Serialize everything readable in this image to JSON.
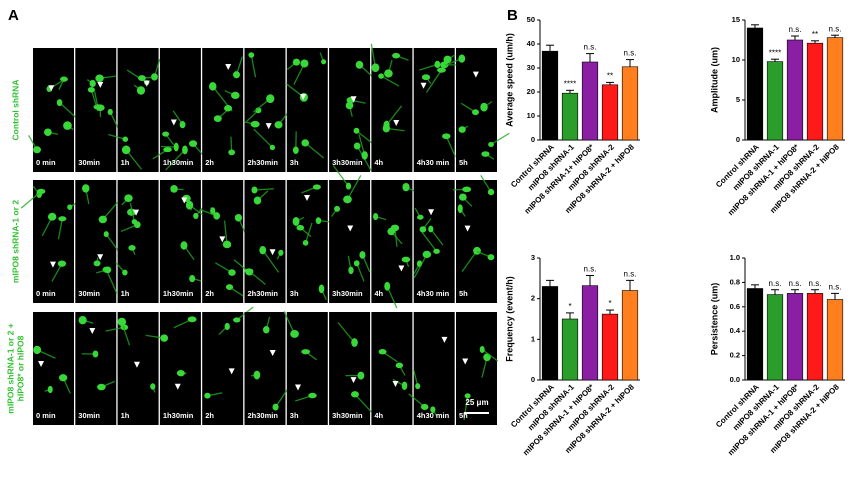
{
  "panel_a": {
    "label": "A",
    "scale_bar": "25 μm",
    "rows": [
      {
        "label": [
          "Control shRNA"
        ],
        "times": [
          "0 min",
          "30min",
          "1h",
          "1h30min",
          "2h",
          "2h30min",
          "3h",
          "3h30min",
          "4h",
          "4h30 min",
          "5h"
        ]
      },
      {
        "label": [
          "mIPO8 shRNA-1 or 2"
        ],
        "times": [
          "0 min",
          "30min",
          "1h",
          "1h30min",
          "2h",
          "2h30min",
          "3h",
          "3h30min",
          "4h",
          "4h30 min",
          "5h"
        ]
      },
      {
        "label": [
          "mIPO8 shRNA-1 or 2 +",
          "hIPO8* or hIPO8"
        ],
        "times": [
          "0 min",
          "30min",
          "1h",
          "1h30min",
          "2h",
          "2h30min",
          "3h",
          "3h30min",
          "4h",
          "4h30 min",
          "5h"
        ]
      }
    ]
  },
  "panel_b": {
    "label": "B"
  },
  "chart_data": [
    {
      "type": "bar",
      "y_label": "Average speed (um/h)",
      "categories": [
        "Control shRNA",
        "mIPO8 shRNA-1",
        "mIPO8 shRNA-1+ hIPO8*",
        "mIPO8 shRNA-2",
        "mIPO8 shRNA-2 + hIPO8"
      ],
      "values": [
        37,
        19.5,
        32.5,
        23,
        30.5
      ],
      "errors": [
        2.5,
        1.2,
        3.5,
        1,
        3
      ],
      "annotations": [
        null,
        "****",
        "n.s.",
        "**",
        "n.s."
      ],
      "colors": [
        "#000000",
        "#2a9d2a",
        "#8b1fa3",
        "#ff1a1a",
        "#ff7f1f"
      ],
      "ylim": [
        0,
        50
      ],
      "yticks": [
        0,
        10,
        20,
        30,
        40,
        50
      ]
    },
    {
      "type": "bar",
      "y_label": "Amplitude (um)",
      "categories": [
        "Control shRNA",
        "mIPO8 shRNA-1",
        "mIPO8 shRNA-1 + hIPO8*",
        "mIPO8 shRNA-2",
        "mIPO8 shRNA-2 + hIPO8"
      ],
      "values": [
        14,
        9.8,
        12.5,
        12.1,
        12.8
      ],
      "errors": [
        0.4,
        0.3,
        0.5,
        0.3,
        0.3
      ],
      "annotations": [
        null,
        "****",
        "n.s.",
        "**",
        "n.s."
      ],
      "colors": [
        "#000000",
        "#2a9d2a",
        "#8b1fa3",
        "#ff1a1a",
        "#ff7f1f"
      ],
      "ylim": [
        0,
        15
      ],
      "yticks": [
        0,
        5,
        10,
        15
      ]
    },
    {
      "type": "bar",
      "y_label": "Frequency (event/h)",
      "categories": [
        "Control shRNA",
        "mIPO8 shRNA-1",
        "mIPO8 shRNA-1 + hIPO8*",
        "mIPO8 shRNA-2",
        "mIPO8 shRNA-2 + hIPO8"
      ],
      "values": [
        2.3,
        1.5,
        2.32,
        1.62,
        2.2
      ],
      "errors": [
        0.15,
        0.15,
        0.25,
        0.1,
        0.25
      ],
      "annotations": [
        null,
        "*",
        "n.s.",
        "*",
        "n.s."
      ],
      "colors": [
        "#000000",
        "#2a9d2a",
        "#8b1fa3",
        "#ff1a1a",
        "#ff7f1f"
      ],
      "ylim": [
        0,
        3
      ],
      "yticks": [
        0,
        1,
        2,
        3
      ]
    },
    {
      "type": "bar",
      "y_label": "Persistence (um)",
      "categories": [
        "Control shRNA",
        "mIPO8 shRNA-1",
        "mIPO8 shRNA-1 + hIPO8*",
        "mIPO8 shRNA-2",
        "mIPO8 shRNA-2 + hIPO8"
      ],
      "values": [
        0.75,
        0.7,
        0.71,
        0.71,
        0.66
      ],
      "errors": [
        0.03,
        0.04,
        0.03,
        0.03,
        0.05
      ],
      "annotations": [
        null,
        "n.s.",
        "n.s.",
        "n.s.",
        "n.s."
      ],
      "colors": [
        "#000000",
        "#2a9d2a",
        "#8b1fa3",
        "#ff1a1a",
        "#ff7f1f"
      ],
      "ylim": [
        0,
        1
      ],
      "yticks": [
        {
          "value": 0,
          "label": "0.0"
        },
        0.2,
        0.4,
        0.6,
        0.8,
        {
          "value": 1,
          "label": "1.0"
        }
      ]
    }
  ]
}
